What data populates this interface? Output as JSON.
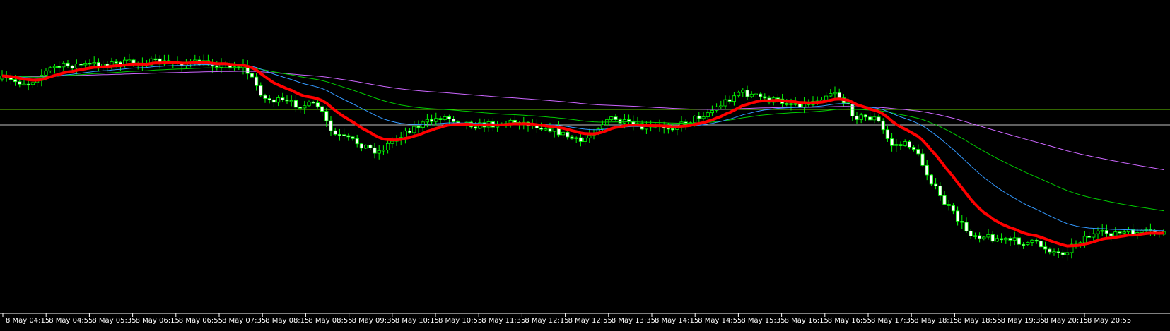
{
  "window": {
    "background": "#000000",
    "foreground": "#ffffff"
  },
  "chart_data": {
    "type": "candlestick",
    "time_labels": [
      "8 May 04:15",
      "8 May 04:55",
      "8 May 05:35",
      "8 May 06:15",
      "8 May 06:55",
      "8 May 07:35",
      "8 May 08:15",
      "8 May 08:55",
      "8 May 09:35",
      "8 May 10:15",
      "8 May 10:55",
      "8 May 11:35",
      "8 May 12:15",
      "8 May 12:55",
      "8 May 13:35",
      "8 May 14:15",
      "8 May 14:55",
      "8 May 15:35",
      "8 May 16:15",
      "8 May 16:55",
      "8 May 17:35",
      "8 May 18:15",
      "8 May 18:55",
      "8 May 19:35",
      "8 May 20:15",
      "8 May 20:55"
    ],
    "grid": false,
    "candle_color": "#00ff00",
    "candle_fill_bull": "#000000",
    "candle_fill_bear": "#ffffff",
    "price_profile": [
      [
        0,
        112
      ],
      [
        40,
        118
      ],
      [
        75,
        95
      ],
      [
        110,
        92
      ],
      [
        160,
        90
      ],
      [
        210,
        88
      ],
      [
        300,
        90
      ],
      [
        345,
        95
      ],
      [
        375,
        140
      ],
      [
        420,
        148
      ],
      [
        450,
        150
      ],
      [
        470,
        190
      ],
      [
        500,
        200
      ],
      [
        535,
        215
      ],
      [
        575,
        185
      ],
      [
        625,
        165
      ],
      [
        675,
        178
      ],
      [
        730,
        172
      ],
      [
        780,
        182
      ],
      [
        820,
        202
      ],
      [
        860,
        168
      ],
      [
        910,
        182
      ],
      [
        960,
        178
      ],
      [
        1010,
        155
      ],
      [
        1045,
        130
      ],
      [
        1090,
        142
      ],
      [
        1140,
        148
      ],
      [
        1180,
        128
      ],
      [
        1210,
        165
      ],
      [
        1240,
        168
      ],
      [
        1260,
        205
      ],
      [
        1290,
        205
      ],
      [
        1330,
        280
      ],
      [
        1370,
        330
      ],
      [
        1420,
        340
      ],
      [
        1465,
        345
      ],
      [
        1500,
        360
      ],
      [
        1535,
        335
      ],
      [
        1568,
        330
      ]
    ],
    "series": [
      {
        "name": "",
        "color": "#ff0000",
        "width": 4,
        "lag": 14
      },
      {
        "name": "",
        "color": "#3399ff",
        "width": 1,
        "lag": 34
      },
      {
        "name": "",
        "color": "#00cc00",
        "width": 1,
        "lag": 70
      },
      {
        "name": "",
        "color": "#cc66ff",
        "width": 1,
        "lag": 170
      }
    ],
    "levels": [
      {
        "price_level": "upper",
        "color": "#66cc00"
      },
      {
        "price_level": "lower",
        "color": "#c0c0c0"
      }
    ]
  }
}
